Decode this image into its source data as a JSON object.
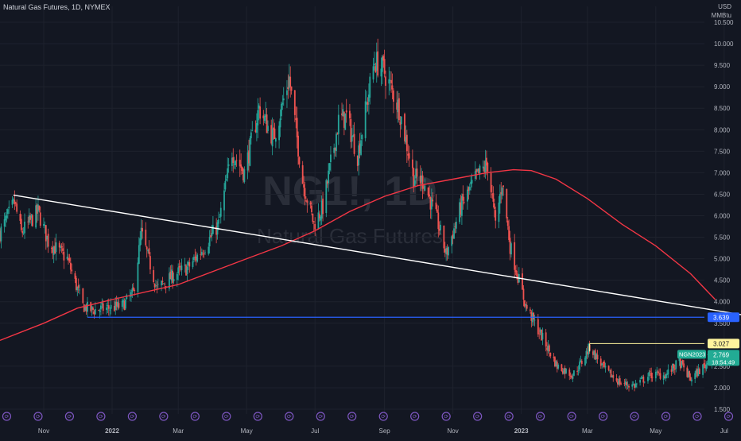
{
  "header": {
    "symbol_title": "Natural Gas Futures, 1D, NYMEX",
    "currency": "USD",
    "unit": "MMBtu"
  },
  "watermark": {
    "ticker": "NG1!, 1D",
    "name": "Natural Gas Futures"
  },
  "colors": {
    "background": "#131722",
    "up": "#26a69a",
    "down": "#ef5350",
    "ma": "#f23645",
    "trendline": "#ffffff",
    "support": "#2962ff",
    "last_price": "#22ab94",
    "level_3027": "#fff59d",
    "event_icon": "#7e57c2"
  },
  "chart_data": {
    "type": "candlestick",
    "title": "Natural Gas Futures, 1D, NYMEX",
    "y_range": [
      1.5,
      10.5
    ],
    "y_ticks": [
      "10.500",
      "10.000",
      "9.500",
      "9.000",
      "8.500",
      "8.000",
      "7.500",
      "7.000",
      "6.500",
      "6.000",
      "5.500",
      "5.000",
      "4.500",
      "4.000",
      "3.500",
      "2.500",
      "2.000",
      "1.500"
    ],
    "x_range": [
      "2021-09-23",
      "2023-07-16"
    ],
    "x_ticks": [
      {
        "date": "2021-11-01",
        "label": "Nov",
        "bold": false
      },
      {
        "date": "2022-01-01",
        "label": "2022",
        "bold": true
      },
      {
        "date": "2022-03-01",
        "label": "Mar",
        "bold": false
      },
      {
        "date": "2022-05-01",
        "label": "May",
        "bold": false
      },
      {
        "date": "2022-07-01",
        "label": "Jul",
        "bold": false
      },
      {
        "date": "2022-09-01",
        "label": "Sep",
        "bold": false
      },
      {
        "date": "2022-11-01",
        "label": "Nov",
        "bold": false
      },
      {
        "date": "2023-01-01",
        "label": "2023",
        "bold": true
      },
      {
        "date": "2023-03-01",
        "label": "Mar",
        "bold": false
      },
      {
        "date": "2023-05-01",
        "label": "May",
        "bold": false
      },
      {
        "date": "2023-07-01",
        "label": "Jul",
        "bold": false
      }
    ],
    "price_path": [
      [
        "2021-09-23",
        5.6
      ],
      [
        "2021-10-06",
        6.3
      ],
      [
        "2021-10-12",
        5.6
      ],
      [
        "2021-10-27",
        6.1
      ],
      [
        "2021-11-05",
        5.4
      ],
      [
        "2021-11-22",
        5.0
      ],
      [
        "2021-12-06",
        3.9
      ],
      [
        "2021-12-14",
        3.8
      ],
      [
        "2021-12-28",
        3.85
      ],
      [
        "2022-01-10",
        3.9
      ],
      [
        "2022-01-20",
        4.2
      ],
      [
        "2022-01-27",
        5.6
      ],
      [
        "2022-02-10",
        4.3
      ],
      [
        "2022-02-24",
        4.6
      ],
      [
        "2022-03-10",
        4.8
      ],
      [
        "2022-03-25",
        5.3
      ],
      [
        "2022-04-06",
        5.8
      ],
      [
        "2022-04-18",
        7.5
      ],
      [
        "2022-04-29",
        7.0
      ],
      [
        "2022-05-12",
        8.5
      ],
      [
        "2022-05-25",
        7.8
      ],
      [
        "2022-06-08",
        9.2
      ],
      [
        "2022-06-20",
        6.8
      ],
      [
        "2022-06-30",
        5.8
      ],
      [
        "2022-07-08",
        6.2
      ],
      [
        "2022-07-22",
        8.2
      ],
      [
        "2022-07-29",
        8.3
      ],
      [
        "2022-08-08",
        7.4
      ],
      [
        "2022-08-23",
        9.6
      ],
      [
        "2022-08-31",
        9.4
      ],
      [
        "2022-09-14",
        8.5
      ],
      [
        "2022-09-27",
        6.9
      ],
      [
        "2022-10-06",
        6.8
      ],
      [
        "2022-10-19",
        5.8
      ],
      [
        "2022-10-26",
        5.1
      ],
      [
        "2022-11-08",
        6.2
      ],
      [
        "2022-11-22",
        6.9
      ],
      [
        "2022-12-02",
        7.2
      ],
      [
        "2022-12-09",
        5.8
      ],
      [
        "2022-12-15",
        6.8
      ],
      [
        "2022-12-22",
        5.3
      ],
      [
        "2023-01-05",
        3.9
      ],
      [
        "2023-01-19",
        3.2
      ],
      [
        "2023-02-02",
        2.5
      ],
      [
        "2023-02-16",
        2.3
      ],
      [
        "2023-02-24",
        2.6
      ],
      [
        "2023-03-03",
        2.95
      ],
      [
        "2023-03-17",
        2.4
      ],
      [
        "2023-03-31",
        2.1
      ],
      [
        "2023-04-12",
        2.05
      ],
      [
        "2023-04-26",
        2.3
      ],
      [
        "2023-05-10",
        2.3
      ],
      [
        "2023-05-22",
        2.6
      ],
      [
        "2023-06-01",
        2.2
      ],
      [
        "2023-06-15",
        2.55
      ],
      [
        "2023-06-23",
        2.769
      ]
    ],
    "moving_average": [
      [
        "2021-09-23",
        3.1
      ],
      [
        "2021-11-01",
        3.5
      ],
      [
        "2021-12-01",
        3.85
      ],
      [
        "2022-01-01",
        4.05
      ],
      [
        "2022-03-01",
        4.4
      ],
      [
        "2022-05-01",
        5.0
      ],
      [
        "2022-06-01",
        5.3
      ],
      [
        "2022-07-01",
        5.65
      ],
      [
        "2022-08-01",
        6.1
      ],
      [
        "2022-09-01",
        6.45
      ],
      [
        "2022-10-01",
        6.7
      ],
      [
        "2022-11-01",
        6.85
      ],
      [
        "2022-12-01",
        7.0
      ],
      [
        "2022-12-25",
        7.07
      ],
      [
        "2023-01-10",
        7.05
      ],
      [
        "2023-02-01",
        6.85
      ],
      [
        "2023-03-01",
        6.4
      ],
      [
        "2023-04-01",
        5.8
      ],
      [
        "2023-05-01",
        5.3
      ],
      [
        "2023-06-01",
        4.65
      ],
      [
        "2023-06-23",
        4.05
      ]
    ],
    "trendline": {
      "start": [
        "2021-10-05",
        6.48
      ],
      "end": [
        "2023-07-16",
        3.7
      ]
    },
    "support_line": {
      "value": 3.639,
      "from": "2021-12-10",
      "label": "3.639"
    },
    "level_line": {
      "value": 3.027,
      "from": "2023-03-03",
      "label": "3.027"
    },
    "last_price": {
      "value": 2.769,
      "ticker": "NGN2023",
      "price_label": "2.769",
      "countdown": "18:54:49"
    },
    "events_label": "⟳"
  }
}
